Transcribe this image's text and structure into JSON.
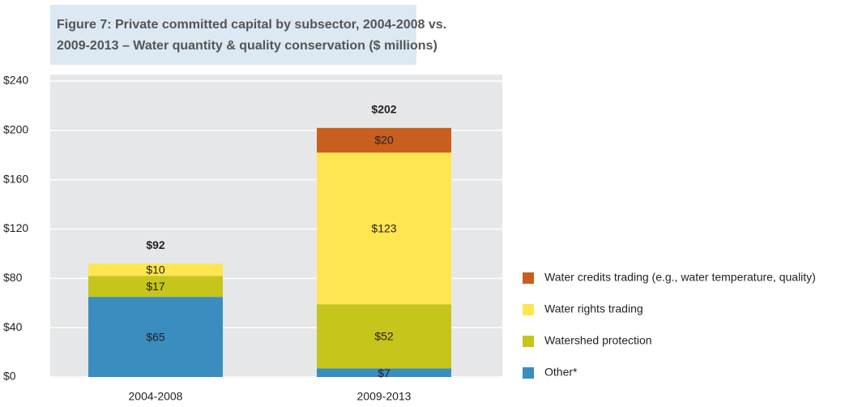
{
  "chart_data": {
    "type": "stacked_bar",
    "title": "Figure 7: Private committed capital by subsector, 2004-2008 vs. 2009-2013 – Water quantity & quality conservation ($ millions)",
    "categories": [
      "2004-2008",
      "2009-2013"
    ],
    "series": [
      {
        "name": "Other*",
        "color": "#3a8dbf",
        "values": [
          65,
          7
        ],
        "value_labels": [
          "$65",
          "$7"
        ]
      },
      {
        "name": "Watershed protection",
        "color": "#c6c51c",
        "values": [
          17,
          52
        ],
        "value_labels": [
          "$17",
          "$52"
        ]
      },
      {
        "name": "Water rights trading",
        "color": "#ffe651",
        "values": [
          10,
          123
        ],
        "value_labels": [
          "$10",
          "$123"
        ]
      },
      {
        "name": "Water credits trading (e.g., water temperature, quality)",
        "color": "#c95f1e",
        "values": [
          null,
          20
        ],
        "value_labels": [
          null,
          "$20"
        ]
      }
    ],
    "totals": [
      92,
      202
    ],
    "total_labels": [
      "$92",
      "$202"
    ],
    "ylim": [
      0,
      240
    ],
    "yticks": [
      {
        "value": 0,
        "label": "$0"
      },
      {
        "value": 40,
        "label": "$40"
      },
      {
        "value": 80,
        "label": "$80"
      },
      {
        "value": 120,
        "label": "$120"
      },
      {
        "value": 160,
        "label": "$160"
      },
      {
        "value": 200,
        "label": "$200"
      },
      {
        "value": 240,
        "label": "$240"
      }
    ],
    "grid": true,
    "legend": "right"
  }
}
